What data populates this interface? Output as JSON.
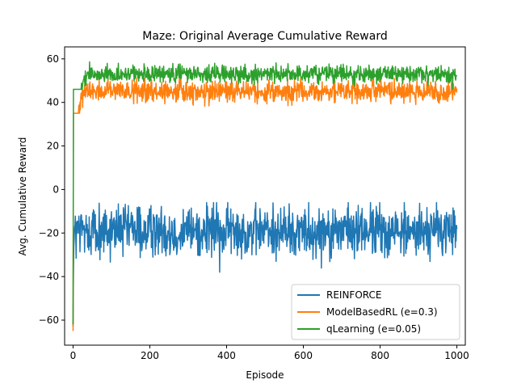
{
  "chart_data": {
    "type": "line",
    "title": "Maze: Original Average Cumulative Reward",
    "xlabel": "Episode",
    "ylabel": "Avg. Cumulative Reward",
    "xlim": [
      -22,
      1022
    ],
    "ylim": [
      -71.5,
      65.5
    ],
    "xticks": [
      0,
      200,
      400,
      600,
      800,
      1000
    ],
    "yticks": [
      -60,
      -40,
      -20,
      0,
      20,
      40,
      60
    ],
    "xtick_labels": [
      "0",
      "200",
      "400",
      "600",
      "800",
      "1000"
    ],
    "ytick_labels": [
      "−60",
      "−40",
      "−20",
      "0",
      "20",
      "40",
      "60"
    ],
    "grid": false,
    "legend_position": "lower-right",
    "episodes": 1000,
    "series": [
      {
        "name": "REINFORCE",
        "color": "#1f77b4",
        "start_value": -63,
        "plateau_mean": -19,
        "noise_amplitude": 6,
        "observed_max": -6,
        "observed_min": -38
      },
      {
        "name": "ModelBasedRL (e=0.3)",
        "color": "#ff7f0e",
        "start_value": -65,
        "plateau_mean": 45,
        "noise_amplitude": 2.5,
        "observed_max": 51,
        "observed_min": 35
      },
      {
        "name": "qLearning (e=0.05)",
        "color": "#2ca02c",
        "start_value": -62,
        "plateau_mean": 53,
        "noise_amplitude": 2,
        "observed_max": 59.5,
        "observed_min": 46
      }
    ]
  }
}
